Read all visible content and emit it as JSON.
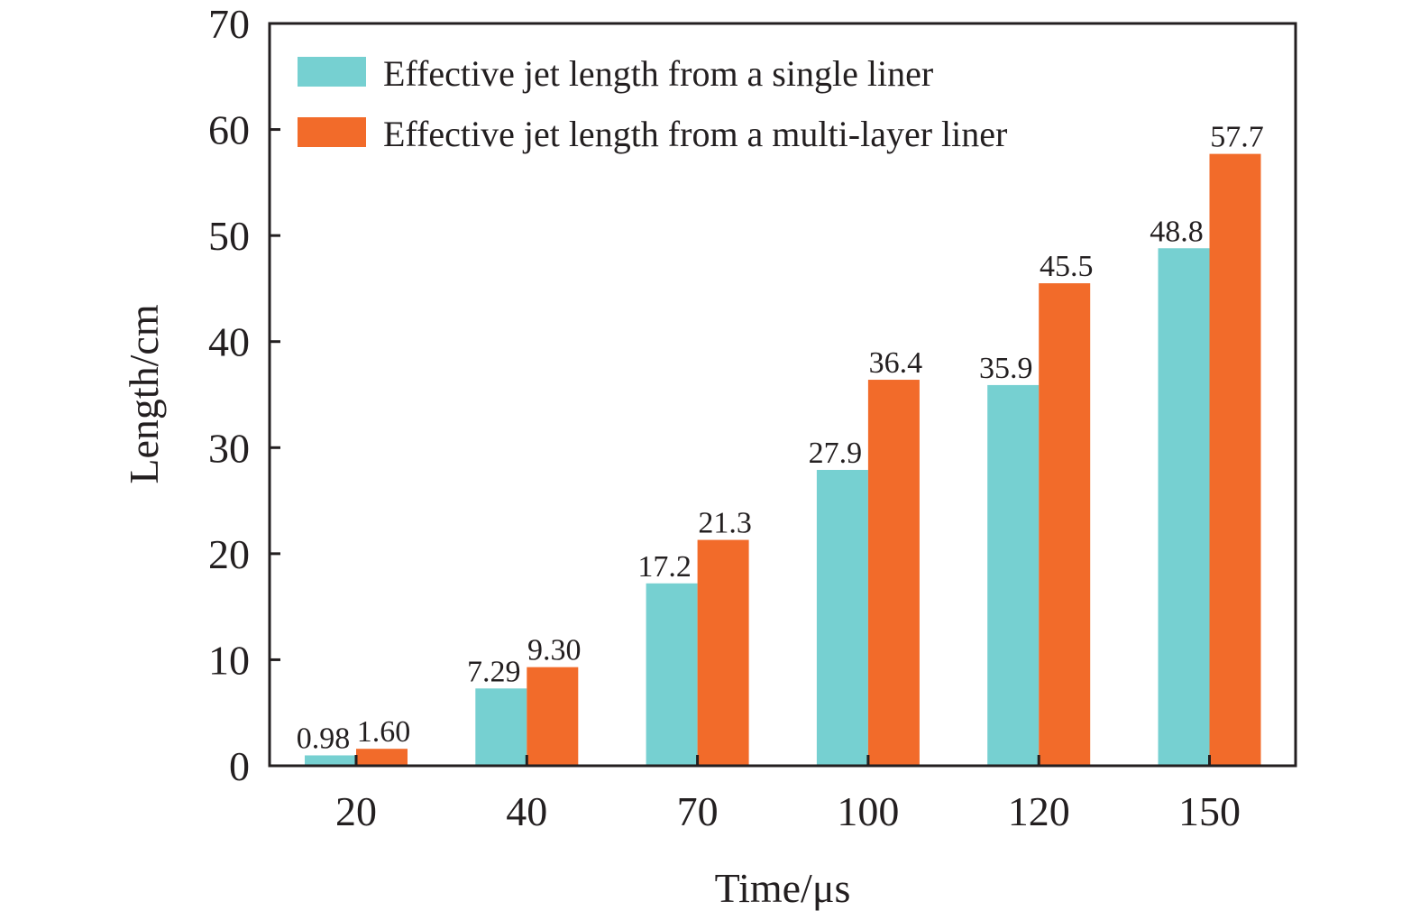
{
  "chart_data": {
    "type": "bar",
    "title": "",
    "xlabel": "Time/μs",
    "ylabel": "Length/cm",
    "ylim": [
      0,
      70
    ],
    "yticks": [
      0,
      10,
      20,
      30,
      40,
      50,
      60,
      70
    ],
    "categories": [
      "20",
      "40",
      "70",
      "100",
      "120",
      "150"
    ],
    "grid": false,
    "legend_position": "top-left",
    "series": [
      {
        "name": "Effective jet length from a single liner",
        "color": "#76D0D1",
        "values": [
          0.98,
          7.29,
          17.2,
          27.9,
          35.9,
          48.8
        ],
        "labels": [
          "0.98",
          "7.29",
          "17.2",
          "27.9",
          "35.9",
          "48.8"
        ]
      },
      {
        "name": "Effective jet length from a multi-layer liner",
        "color": "#F26B2A",
        "values": [
          1.6,
          9.3,
          21.3,
          36.4,
          45.5,
          57.7
        ],
        "labels": [
          "1.60",
          "9.30",
          "21.3",
          "36.4",
          "45.5",
          "57.7"
        ]
      }
    ]
  }
}
